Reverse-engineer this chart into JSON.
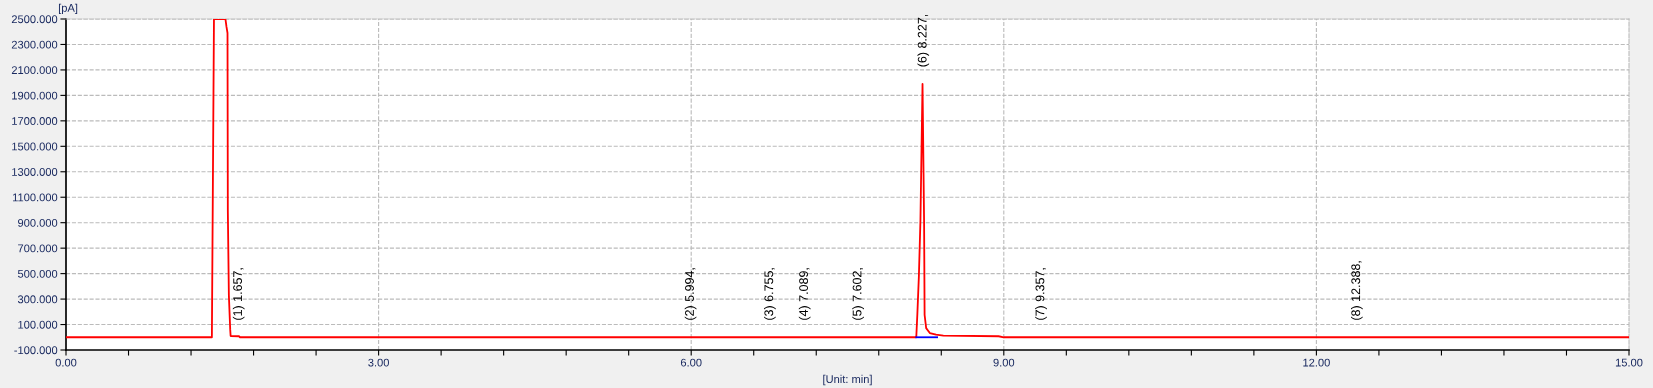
{
  "chart_data": {
    "type": "line",
    "xlabel": "[Unit: min]",
    "ylabel": "[pA]",
    "series": [
      {
        "color": "#ff0000",
        "x": [
          0,
          1.4,
          1.41,
          1.42,
          1.53,
          1.54,
          1.55,
          1.553,
          1.563,
          1.576,
          1.58,
          1.66,
          1.67,
          5.99,
          6.0,
          7.08,
          7.09,
          8.15,
          8.16,
          8.17,
          8.185,
          8.2,
          8.21,
          8.22,
          8.235,
          8.24,
          8.255,
          8.29,
          8.35,
          8.42,
          8.95,
          9.0,
          15.0
        ],
        "values": [
          0,
          0,
          1250,
          2500,
          2500,
          2440,
          2390,
          1000,
          330,
          60,
          10,
          8,
          0,
          0,
          0,
          0,
          0,
          0,
          0,
          175,
          480,
          918,
          1456,
          1990,
          905,
          175,
          72,
          33,
          20,
          13,
          8,
          0,
          0
        ]
      },
      {
        "color": "#0000ff",
        "x": [
          8.16,
          8.36
        ],
        "values": [
          0,
          0
        ]
      }
    ],
    "xlim": [
      0,
      15
    ],
    "xticks": [
      {
        "value": 0,
        "label": "0.00"
      },
      {
        "value": 0.6,
        "label": null
      },
      {
        "value": 1.2,
        "label": null
      },
      {
        "value": 1.8,
        "label": null
      },
      {
        "value": 2.4,
        "label": null
      },
      {
        "value": 3,
        "label": "3.00"
      },
      {
        "value": 3.6,
        "label": null
      },
      {
        "value": 4.2,
        "label": null
      },
      {
        "value": 4.8,
        "label": null
      },
      {
        "value": 5.4,
        "label": null
      },
      {
        "value": 6,
        "label": "6.00"
      },
      {
        "value": 6.6,
        "label": null
      },
      {
        "value": 7.2,
        "label": null
      },
      {
        "value": 7.8,
        "label": null
      },
      {
        "value": 8.4,
        "label": null
      },
      {
        "value": 9,
        "label": "9.00"
      },
      {
        "value": 9.6,
        "label": null
      },
      {
        "value": 10.2,
        "label": null
      },
      {
        "value": 10.8,
        "label": null
      },
      {
        "value": 11.4,
        "label": null
      },
      {
        "value": 12,
        "label": "12.00"
      },
      {
        "value": 12.6,
        "label": null
      },
      {
        "value": 13.2,
        "label": null
      },
      {
        "value": 13.8,
        "label": null
      },
      {
        "value": 14.4,
        "label": null
      },
      {
        "value": 15,
        "label": "15.00"
      }
    ],
    "ylim": [
      -100,
      2500
    ],
    "yticks": [
      {
        "value": -100,
        "label": "-100.000"
      },
      {
        "value": 100,
        "label": "100.000"
      },
      {
        "value": 300,
        "label": "300.000"
      },
      {
        "value": 500,
        "label": "500.000"
      },
      {
        "value": 700,
        "label": "700.000"
      },
      {
        "value": 900,
        "label": "900.000"
      },
      {
        "value": 1100,
        "label": "1100.000"
      },
      {
        "value": 1300,
        "label": "1300.000"
      },
      {
        "value": 1500,
        "label": "1500.000"
      },
      {
        "value": 1700,
        "label": "1700.000"
      },
      {
        "value": 1900,
        "label": "1900.000"
      },
      {
        "value": 2100,
        "label": "2100.000"
      },
      {
        "value": 2300,
        "label": "2300.000"
      },
      {
        "value": 2500,
        "label": "2500.000"
      }
    ],
    "grid": true,
    "line_style": "solid",
    "marker": "none",
    "annotations": [
      {
        "text": "(1) 1.657,",
        "x": 1.657,
        "y": 0
      },
      {
        "text": "(2) 5.994,",
        "x": 5.994,
        "y": 0
      },
      {
        "text": "(3) 6.755,",
        "x": 6.755,
        "y": 0
      },
      {
        "text": "(4) 7.089,",
        "x": 7.089,
        "y": 0
      },
      {
        "text": "(5) 7.602,",
        "x": 7.602,
        "y": 0
      },
      {
        "text": "(6) 8.227,",
        "x": 8.227,
        "y": 1990
      },
      {
        "text": "(7) 9.357,",
        "x": 9.357,
        "y": 0
      },
      {
        "text": "(8) 12.388,",
        "x": 12.388,
        "y": 0
      }
    ]
  }
}
